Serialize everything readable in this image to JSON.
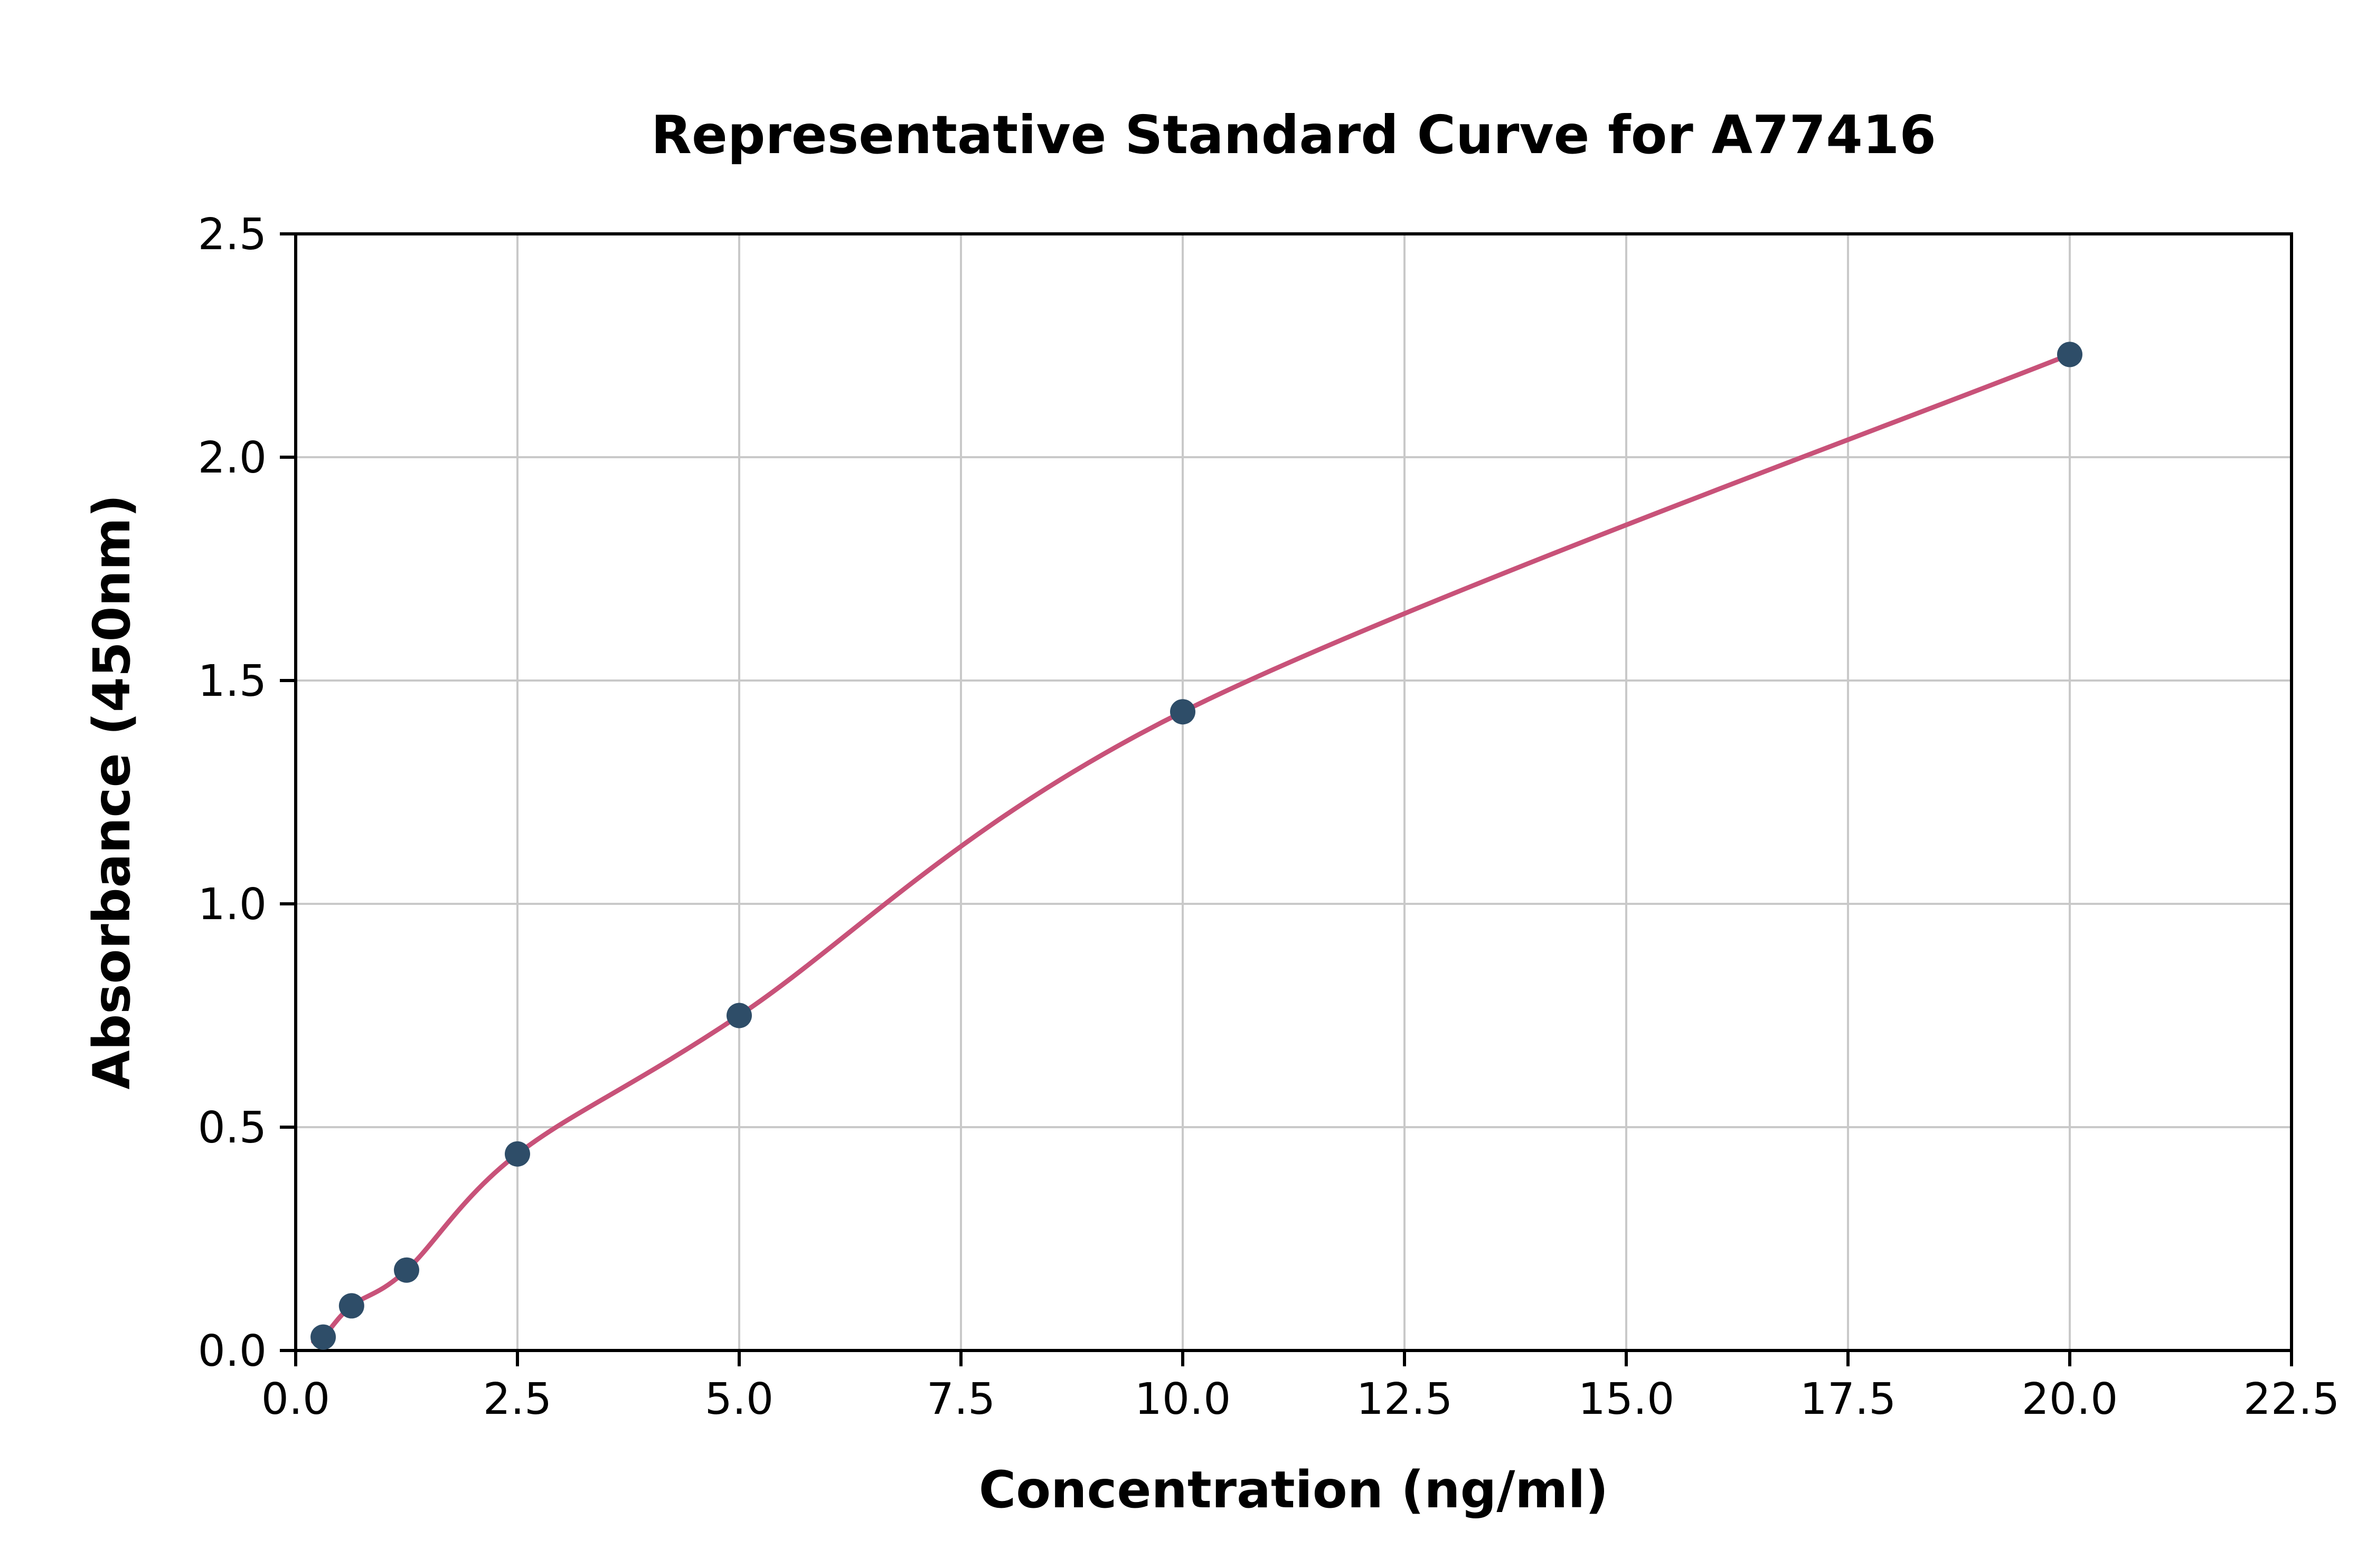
{
  "chart_data": {
    "type": "scatter",
    "title": "Representative Standard Curve for A77416",
    "xlabel": "Concentration (ng/ml)",
    "ylabel": "Absorbance (450nm)",
    "xlim": [
      0,
      22.5
    ],
    "ylim": [
      0,
      2.5
    ],
    "x_ticks": [
      0.0,
      2.5,
      5.0,
      7.5,
      10.0,
      12.5,
      15.0,
      17.5,
      20.0,
      22.5
    ],
    "y_ticks": [
      0.0,
      0.5,
      1.0,
      1.5,
      2.0,
      2.5
    ],
    "grid": true,
    "legend": "none",
    "points": [
      [
        0.31,
        0.03
      ],
      [
        0.63,
        0.1
      ],
      [
        1.25,
        0.18
      ],
      [
        2.5,
        0.44
      ],
      [
        5.0,
        0.75
      ],
      [
        10.0,
        1.43
      ],
      [
        20.0,
        2.23
      ]
    ],
    "curve_start": [
      0.2,
      0.02
    ],
    "fit_curve": true,
    "point_color": "#2e4d68",
    "curve_color": "#c85279",
    "grid_color": "#c9c9c9",
    "axis_color": "#000000",
    "background_color": "#ffffff"
  }
}
